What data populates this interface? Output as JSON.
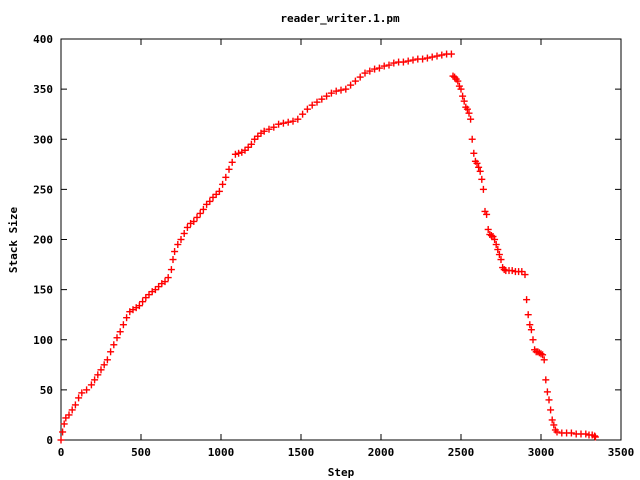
{
  "chart_data": {
    "type": "scatter",
    "title": "reader_writer.1.pm",
    "xlabel": "Step",
    "ylabel": "Stack Size",
    "xlim": [
      0,
      3500
    ],
    "ylim": [
      0,
      400
    ],
    "xticks": [
      "0",
      "500",
      "1000",
      "1500",
      "2000",
      "2500",
      "3000",
      "3500"
    ],
    "yticks": [
      "0",
      "50",
      "100",
      "150",
      "200",
      "250",
      "300",
      "350",
      "400"
    ],
    "grid": false,
    "legend": "none",
    "marker": "plus",
    "color": "#ff0000",
    "series": [
      {
        "points": [
          [
            0,
            0
          ],
          [
            10,
            8
          ],
          [
            20,
            16
          ],
          [
            30,
            22
          ],
          [
            50,
            25
          ],
          [
            70,
            30
          ],
          [
            90,
            35
          ],
          [
            110,
            42
          ],
          [
            130,
            47
          ],
          [
            160,
            50
          ],
          [
            190,
            55
          ],
          [
            210,
            60
          ],
          [
            230,
            65
          ],
          [
            250,
            70
          ],
          [
            270,
            75
          ],
          [
            290,
            80
          ],
          [
            310,
            88
          ],
          [
            330,
            95
          ],
          [
            350,
            102
          ],
          [
            370,
            108
          ],
          [
            390,
            115
          ],
          [
            410,
            122
          ],
          [
            430,
            128
          ],
          [
            450,
            130
          ],
          [
            470,
            132
          ],
          [
            490,
            134
          ],
          [
            510,
            138
          ],
          [
            530,
            142
          ],
          [
            550,
            145
          ],
          [
            570,
            148
          ],
          [
            590,
            150
          ],
          [
            610,
            153
          ],
          [
            630,
            156
          ],
          [
            650,
            158
          ],
          [
            670,
            162
          ],
          [
            690,
            170
          ],
          [
            700,
            180
          ],
          [
            710,
            188
          ],
          [
            730,
            195
          ],
          [
            750,
            200
          ],
          [
            770,
            206
          ],
          [
            790,
            212
          ],
          [
            810,
            216
          ],
          [
            830,
            218
          ],
          [
            850,
            222
          ],
          [
            870,
            226
          ],
          [
            890,
            230
          ],
          [
            910,
            235
          ],
          [
            930,
            238
          ],
          [
            950,
            242
          ],
          [
            970,
            245
          ],
          [
            990,
            248
          ],
          [
            1010,
            255
          ],
          [
            1030,
            262
          ],
          [
            1050,
            270
          ],
          [
            1070,
            277
          ],
          [
            1090,
            285
          ],
          [
            1110,
            286
          ],
          [
            1130,
            287
          ],
          [
            1150,
            289
          ],
          [
            1170,
            292
          ],
          [
            1190,
            295
          ],
          [
            1210,
            300
          ],
          [
            1230,
            303
          ],
          [
            1250,
            306
          ],
          [
            1270,
            308
          ],
          [
            1300,
            310
          ],
          [
            1330,
            312
          ],
          [
            1360,
            315
          ],
          [
            1390,
            316
          ],
          [
            1420,
            317
          ],
          [
            1450,
            318
          ],
          [
            1480,
            320
          ],
          [
            1510,
            325
          ],
          [
            1540,
            330
          ],
          [
            1570,
            334
          ],
          [
            1600,
            337
          ],
          [
            1630,
            340
          ],
          [
            1660,
            343
          ],
          [
            1690,
            346
          ],
          [
            1720,
            348
          ],
          [
            1750,
            349
          ],
          [
            1780,
            350
          ],
          [
            1810,
            354
          ],
          [
            1840,
            358
          ],
          [
            1870,
            362
          ],
          [
            1900,
            366
          ],
          [
            1930,
            368
          ],
          [
            1960,
            370
          ],
          [
            1990,
            371
          ],
          [
            2020,
            373
          ],
          [
            2050,
            374
          ],
          [
            2080,
            376
          ],
          [
            2110,
            377
          ],
          [
            2140,
            377
          ],
          [
            2170,
            378
          ],
          [
            2200,
            379
          ],
          [
            2230,
            380
          ],
          [
            2260,
            380
          ],
          [
            2290,
            381
          ],
          [
            2320,
            382
          ],
          [
            2350,
            383
          ],
          [
            2380,
            384
          ],
          [
            2410,
            385
          ],
          [
            2440,
            385
          ],
          [
            2450,
            363
          ],
          [
            2460,
            362
          ],
          [
            2470,
            360
          ],
          [
            2480,
            358
          ],
          [
            2490,
            353
          ],
          [
            2500,
            350
          ],
          [
            2510,
            343
          ],
          [
            2520,
            338
          ],
          [
            2530,
            332
          ],
          [
            2540,
            330
          ],
          [
            2550,
            326
          ],
          [
            2560,
            320
          ],
          [
            2570,
            300
          ],
          [
            2580,
            286
          ],
          [
            2590,
            278
          ],
          [
            2600,
            276
          ],
          [
            2610,
            272
          ],
          [
            2620,
            268
          ],
          [
            2630,
            260
          ],
          [
            2640,
            250
          ],
          [
            2650,
            228
          ],
          [
            2660,
            225
          ],
          [
            2670,
            210
          ],
          [
            2680,
            205
          ],
          [
            2690,
            204
          ],
          [
            2700,
            203
          ],
          [
            2710,
            200
          ],
          [
            2720,
            195
          ],
          [
            2730,
            190
          ],
          [
            2740,
            185
          ],
          [
            2750,
            180
          ],
          [
            2760,
            172
          ],
          [
            2770,
            170
          ],
          [
            2780,
            169
          ],
          [
            2800,
            169
          ],
          [
            2820,
            169
          ],
          [
            2840,
            168
          ],
          [
            2860,
            168
          ],
          [
            2880,
            168
          ],
          [
            2900,
            165
          ],
          [
            2910,
            140
          ],
          [
            2920,
            125
          ],
          [
            2930,
            115
          ],
          [
            2940,
            110
          ],
          [
            2950,
            100
          ],
          [
            2960,
            90
          ],
          [
            2970,
            88
          ],
          [
            2980,
            88
          ],
          [
            2990,
            87
          ],
          [
            3000,
            86
          ],
          [
            3010,
            85
          ],
          [
            3020,
            80
          ],
          [
            3030,
            60
          ],
          [
            3040,
            48
          ],
          [
            3050,
            40
          ],
          [
            3060,
            30
          ],
          [
            3070,
            20
          ],
          [
            3080,
            15
          ],
          [
            3090,
            10
          ],
          [
            3100,
            8
          ],
          [
            3130,
            7
          ],
          [
            3160,
            7
          ],
          [
            3190,
            7
          ],
          [
            3220,
            6
          ],
          [
            3250,
            6
          ],
          [
            3280,
            6
          ],
          [
            3300,
            5
          ],
          [
            3320,
            5
          ],
          [
            3335,
            4
          ],
          [
            3340,
            3
          ]
        ]
      }
    ]
  }
}
